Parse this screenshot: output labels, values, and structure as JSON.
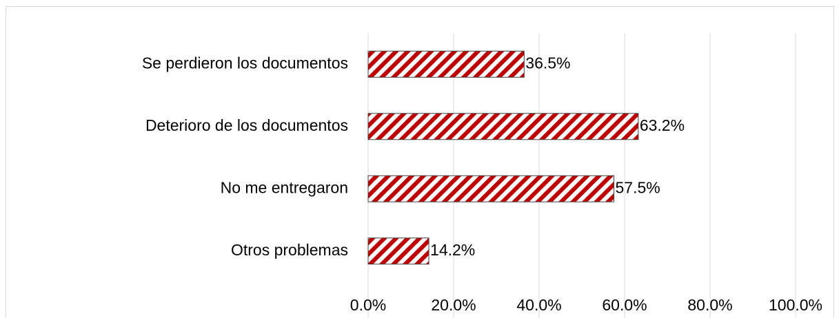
{
  "chart_data": {
    "type": "hbar",
    "categories": [
      "Se perdieron los documentos",
      "Deterioro de los documentos",
      "No me entregaron",
      "Otros problemas"
    ],
    "values": [
      36.5,
      63.2,
      57.5,
      14.2
    ],
    "value_labels": [
      "36.5%",
      "63.2%",
      "57.5%",
      "14.2%"
    ],
    "color": "#c00000",
    "xlim": [
      0,
      100
    ],
    "xticks": [
      {
        "value": 0,
        "label": "0.0%"
      },
      {
        "value": 20,
        "label": "20.0%"
      },
      {
        "value": 40,
        "label": "40.0%"
      },
      {
        "value": 60,
        "label": "60.0%"
      },
      {
        "value": 80,
        "label": "80.0%"
      },
      {
        "value": 100,
        "label": "100.0%"
      }
    ],
    "grid": true
  }
}
